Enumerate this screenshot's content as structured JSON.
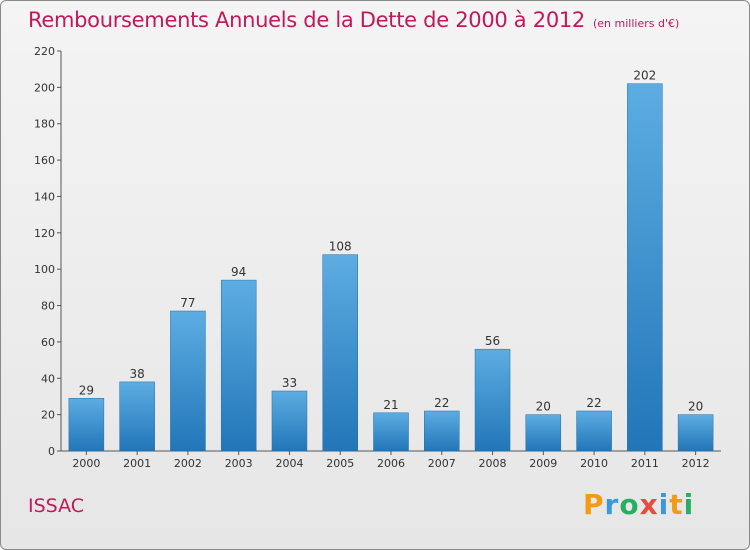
{
  "chart_data": {
    "type": "bar",
    "title": "Remboursements Annuels de la Dette de 2000 à 2012",
    "unit_note": "(en milliers d'€)",
    "xlabel": "",
    "ylabel": "",
    "categories": [
      "2000",
      "2001",
      "2002",
      "2003",
      "2004",
      "2005",
      "2006",
      "2007",
      "2008",
      "2009",
      "2010",
      "2011",
      "2012"
    ],
    "values": [
      29,
      38,
      77,
      94,
      33,
      108,
      21,
      22,
      56,
      20,
      22,
      202,
      20
    ],
    "ylim": [
      0,
      220
    ],
    "yticks": [
      0,
      20,
      40,
      60,
      80,
      100,
      120,
      140,
      160,
      180,
      200,
      220
    ],
    "grid": false,
    "legend": "none",
    "bar_color": "#3a9ad9"
  },
  "footer": {
    "location": "ISSAC",
    "brand": [
      "P",
      "r",
      "o",
      "x",
      "i",
      "t",
      "i"
    ],
    "brand_colors": [
      "#f39c12",
      "#3a9ad9",
      "#27ae60",
      "#e74c3c",
      "#3a9ad9",
      "#f39c12",
      "#27ae60"
    ]
  }
}
